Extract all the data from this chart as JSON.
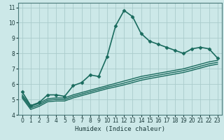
{
  "title": "",
  "xlabel": "Humidex (Indice chaleur)",
  "ylabel": "",
  "bg_color": "#cce8e8",
  "grid_color": "#aacccc",
  "line_color": "#1a6b5e",
  "xlim": [
    -0.5,
    23.5
  ],
  "ylim": [
    4,
    11.3
  ],
  "xticks": [
    0,
    1,
    2,
    3,
    4,
    5,
    6,
    7,
    8,
    9,
    10,
    11,
    12,
    13,
    14,
    15,
    16,
    17,
    18,
    19,
    20,
    21,
    22,
    23
  ],
  "yticks": [
    4,
    5,
    6,
    7,
    8,
    9,
    10,
    11
  ],
  "series": [
    {
      "x": [
        0,
        1,
        2,
        3,
        4,
        5,
        6,
        7,
        8,
        9,
        10,
        11,
        12,
        13,
        14,
        15,
        16,
        17,
        18,
        19,
        20,
        21,
        22,
        23
      ],
      "y": [
        5.5,
        4.6,
        4.8,
        5.3,
        5.3,
        5.2,
        5.9,
        6.1,
        6.6,
        6.5,
        7.8,
        9.8,
        10.8,
        10.4,
        9.3,
        8.8,
        8.6,
        8.4,
        8.2,
        8.0,
        8.3,
        8.4,
        8.3,
        7.7
      ],
      "marker": "D",
      "markersize": 2.5,
      "linewidth": 1.2
    },
    {
      "x": [
        0,
        1,
        2,
        3,
        4,
        5,
        6,
        7,
        8,
        9,
        10,
        11,
        12,
        13,
        14,
        15,
        16,
        17,
        18,
        19,
        20,
        21,
        22,
        23
      ],
      "y": [
        5.3,
        4.55,
        4.75,
        5.05,
        5.1,
        5.1,
        5.3,
        5.45,
        5.6,
        5.75,
        5.9,
        6.05,
        6.2,
        6.35,
        6.5,
        6.6,
        6.7,
        6.8,
        6.9,
        7.0,
        7.15,
        7.3,
        7.45,
        7.55
      ],
      "marker": null,
      "markersize": 0,
      "linewidth": 1.0
    },
    {
      "x": [
        0,
        1,
        2,
        3,
        4,
        5,
        6,
        7,
        8,
        9,
        10,
        11,
        12,
        13,
        14,
        15,
        16,
        17,
        18,
        19,
        20,
        21,
        22,
        23
      ],
      "y": [
        5.2,
        4.45,
        4.65,
        4.95,
        5.0,
        5.0,
        5.2,
        5.35,
        5.5,
        5.65,
        5.8,
        5.93,
        6.07,
        6.22,
        6.37,
        6.48,
        6.58,
        6.68,
        6.78,
        6.88,
        7.02,
        7.17,
        7.32,
        7.42
      ],
      "marker": null,
      "markersize": 0,
      "linewidth": 1.0
    },
    {
      "x": [
        0,
        1,
        2,
        3,
        4,
        5,
        6,
        7,
        8,
        9,
        10,
        11,
        12,
        13,
        14,
        15,
        16,
        17,
        18,
        19,
        20,
        21,
        22,
        23
      ],
      "y": [
        5.1,
        4.35,
        4.55,
        4.85,
        4.9,
        4.9,
        5.1,
        5.25,
        5.4,
        5.55,
        5.7,
        5.82,
        5.95,
        6.1,
        6.25,
        6.36,
        6.46,
        6.56,
        6.66,
        6.76,
        6.9,
        7.05,
        7.2,
        7.3
      ],
      "marker": null,
      "markersize": 0,
      "linewidth": 1.0
    }
  ]
}
